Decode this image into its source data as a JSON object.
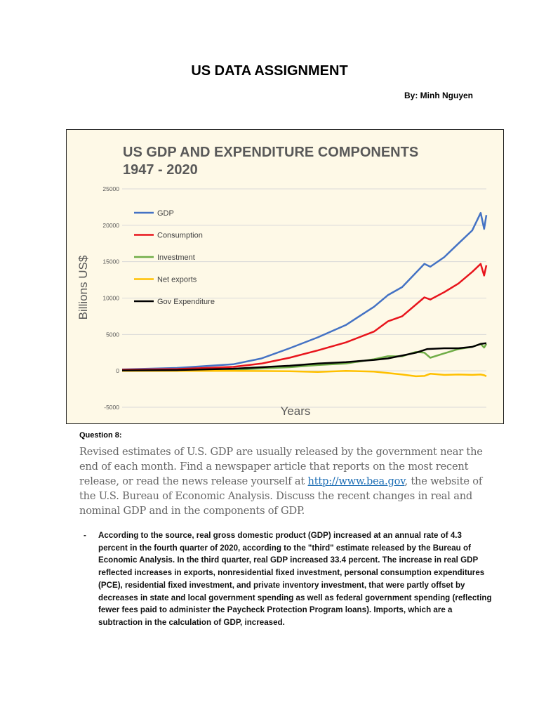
{
  "document": {
    "title": "US DATA ASSIGNMENT",
    "author": "By: Minh Nguyen",
    "question_label": "Question 8:",
    "prompt_before_link": "Revised estimates of U.S. GDP are usually released by the government near the end of each month. Find a newspaper article that reports on the most recent release, or read the news release yourself at ",
    "prompt_link": "http://www.bea.gov",
    "prompt_after_link": ", the website of the U.S. Bureau of Economic Analysis. Discuss the recent changes in real and nominal GDP and in the components of GDP.",
    "answer_bullet": "-",
    "answer": "According to the source, real gross domestic product (GDP) increased at an annual rate of 4.3 percent in the fourth quarter of 2020, according to the \"third\" estimate released by the Bureau of Economic Analysis. In the third quarter, real GDP increased 33.4 percent. The increase in real GDP reflected increases in exports, nonresidential fixed investment, personal consumption expenditures (PCE), residential fixed investment, and private inventory investment, that were partly offset by decreases in state and local government spending as well as federal government spending (reflecting fewer fees paid to administer the Paycheck Protection Program loans). Imports, which are a subtraction in the calculation of GDP, increased."
  },
  "chart_data": {
    "type": "line",
    "title_line1": "US GDP AND EXPENDITURE COMPONENTS",
    "title_line2": "1947 - 2020",
    "xlabel": "Years",
    "ylabel": "Billions US$",
    "xlim": [
      1947,
      2020.75
    ],
    "ylim": [
      -5000,
      25000
    ],
    "yticks": [
      "25000",
      "20000",
      "15000",
      "10000",
      "5000",
      "0",
      "-5000"
    ],
    "grid": true,
    "legend_position": "top-left",
    "background": "#fef9e7",
    "series": [
      {
        "name": "GDP",
        "color": "#4472c4",
        "points": [
          [
            1947,
            200
          ],
          [
            1958.1,
            400
          ],
          [
            1969.5,
            900
          ],
          [
            1975.2,
            1700
          ],
          [
            1980.9,
            3100
          ],
          [
            1986.6,
            4600
          ],
          [
            1992.3,
            6300
          ],
          [
            1998.0,
            8800
          ],
          [
            2000.8,
            10400
          ],
          [
            2003.7,
            11500
          ],
          [
            2008.2,
            14700
          ],
          [
            2009.4,
            14300
          ],
          [
            2012.2,
            15600
          ],
          [
            2015.1,
            17500
          ],
          [
            2017.9,
            19300
          ],
          [
            2019.6,
            21700
          ],
          [
            2020.3,
            19500
          ],
          [
            2020.75,
            21400
          ]
        ]
      },
      {
        "name": "Consumption",
        "color": "#e8141c",
        "points": [
          [
            1947,
            150
          ],
          [
            1958.1,
            250
          ],
          [
            1969.5,
            550
          ],
          [
            1975.2,
            1000
          ],
          [
            1980.9,
            1800
          ],
          [
            1986.6,
            2800
          ],
          [
            1992.3,
            3900
          ],
          [
            1998.0,
            5400
          ],
          [
            2000.8,
            6800
          ],
          [
            2003.7,
            7500
          ],
          [
            2008.2,
            10100
          ],
          [
            2009.4,
            9800
          ],
          [
            2012.2,
            10800
          ],
          [
            2015.1,
            12000
          ],
          [
            2017.9,
            13600
          ],
          [
            2019.6,
            14700
          ],
          [
            2020.3,
            13100
          ],
          [
            2020.75,
            14500
          ]
        ]
      },
      {
        "name": "Investment",
        "color": "#70ad47",
        "points": [
          [
            1947,
            30
          ],
          [
            1969.5,
            150
          ],
          [
            1980.9,
            500
          ],
          [
            1986.6,
            800
          ],
          [
            1992.3,
            1000
          ],
          [
            1998.0,
            1600
          ],
          [
            2000.8,
            2000
          ],
          [
            2003.7,
            2000
          ],
          [
            2006.5,
            2600
          ],
          [
            2008.2,
            2500
          ],
          [
            2009.4,
            1800
          ],
          [
            2012.2,
            2400
          ],
          [
            2015.1,
            3000
          ],
          [
            2017.9,
            3300
          ],
          [
            2019.6,
            3700
          ],
          [
            2020.3,
            3200
          ],
          [
            2020.75,
            3700
          ]
        ]
      },
      {
        "name": "Net exports",
        "color": "#ffc000",
        "points": [
          [
            1947,
            0
          ],
          [
            1969.5,
            0
          ],
          [
            1980.9,
            -50
          ],
          [
            1986.6,
            -150
          ],
          [
            1992.3,
            0
          ],
          [
            1998.0,
            -100
          ],
          [
            2000.8,
            -300
          ],
          [
            2003.7,
            -500
          ],
          [
            2006.5,
            -750
          ],
          [
            2008.2,
            -700
          ],
          [
            2009.4,
            -400
          ],
          [
            2012.2,
            -550
          ],
          [
            2015.1,
            -500
          ],
          [
            2017.9,
            -550
          ],
          [
            2019.6,
            -500
          ],
          [
            2020.3,
            -600
          ],
          [
            2020.75,
            -750
          ]
        ]
      },
      {
        "name": "Gov Expenditure",
        "color": "#000000",
        "points": [
          [
            1947,
            50
          ],
          [
            1958.1,
            100
          ],
          [
            1969.5,
            300
          ],
          [
            1975.2,
            500
          ],
          [
            1980.9,
            700
          ],
          [
            1986.6,
            1000
          ],
          [
            1992.3,
            1200
          ],
          [
            1998.0,
            1500
          ],
          [
            2000.8,
            1700
          ],
          [
            2003.7,
            2100
          ],
          [
            2006.5,
            2500
          ],
          [
            2008.8,
            3000
          ],
          [
            2012.2,
            3100
          ],
          [
            2015.1,
            3100
          ],
          [
            2017.9,
            3300
          ],
          [
            2019.6,
            3700
          ],
          [
            2020.75,
            3800
          ]
        ]
      }
    ]
  }
}
